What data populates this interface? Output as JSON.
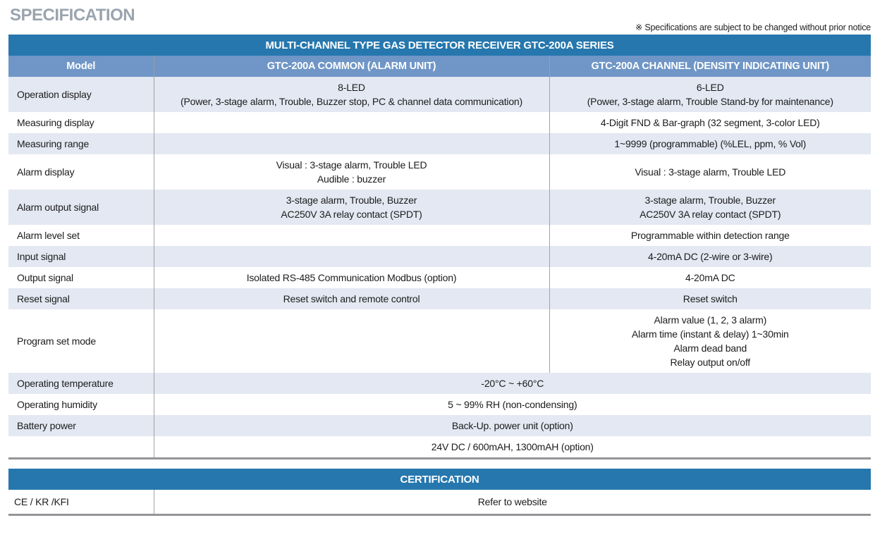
{
  "page": {
    "title": "SPECIFICATION",
    "note": "※ Specifications are subject to be changed without prior notice"
  },
  "colors": {
    "header_blue": "#2677ae",
    "subheader_blue": "#6f96c6",
    "row_alt_blue": "#e3e8f2",
    "title_gray": "#9aa4ae",
    "border_gray": "#939598"
  },
  "spec_table": {
    "title": "MULTI-CHANNEL TYPE GAS DETECTOR RECEIVER GTC-200A SERIES",
    "columns": [
      "Model",
      "GTC-200A COMMON (ALARM UNIT)",
      "GTC-200A CHANNEL (DENSITY INDICATING UNIT)"
    ],
    "rows": [
      {
        "label": "Operation display",
        "common": [
          "8-LED",
          "(Power, 3-stage alarm, Trouble, Buzzer stop, PC & channel data communication)"
        ],
        "channel": [
          "6-LED",
          "(Power, 3-stage alarm, Trouble Stand-by for maintenance)"
        ]
      },
      {
        "label": "Measuring display",
        "common": [],
        "channel": [
          "4-Digit FND & Bar-graph (32 segment, 3-color LED)"
        ]
      },
      {
        "label": "Measuring range",
        "common": [],
        "channel": [
          "1~9999 (programmable) (%LEL, ppm, % Vol)"
        ]
      },
      {
        "label": "Alarm display",
        "common": [
          "Visual : 3-stage alarm, Trouble LED",
          "Audible : buzzer"
        ],
        "channel": [
          "Visual : 3-stage alarm, Trouble LED"
        ]
      },
      {
        "label": "Alarm output signal",
        "common": [
          "3-stage alarm, Trouble, Buzzer",
          "AC250V 3A relay contact (SPDT)"
        ],
        "channel": [
          "3-stage alarm, Trouble, Buzzer",
          "AC250V 3A relay contact (SPDT)"
        ]
      },
      {
        "label": "Alarm level set",
        "common": [],
        "channel": [
          "Programmable within detection range"
        ]
      },
      {
        "label": "Input signal",
        "common": [],
        "channel": [
          "4-20mA DC (2-wire or 3-wire)"
        ]
      },
      {
        "label": "Output signal",
        "common": [
          "Isolated RS-485 Communication Modbus (option)"
        ],
        "channel": [
          "4-20mA DC"
        ]
      },
      {
        "label": "Reset signal",
        "common": [
          "Reset switch and remote control"
        ],
        "channel": [
          "Reset switch"
        ]
      },
      {
        "label": "Program set mode",
        "common": [],
        "channel": [
          "Alarm value (1, 2, 3 alarm)",
          "Alarm time (instant & delay) 1~30min",
          "Alarm dead band",
          "Relay output on/off"
        ]
      },
      {
        "label": "Operating temperature",
        "span": [
          "-20°C ~ +60°C"
        ]
      },
      {
        "label": "Operating humidity",
        "span": [
          "5 ~ 99% RH (non-condensing)"
        ]
      },
      {
        "label": "Battery power",
        "span": [
          "Back-Up. power unit (option)"
        ]
      },
      {
        "label": "",
        "span": [
          "24V DC / 600mAH, 1300mAH (option)"
        ]
      }
    ]
  },
  "certification": {
    "title": "CERTIFICATION",
    "label": "CE / KR /KFI",
    "value": "Refer to website"
  }
}
